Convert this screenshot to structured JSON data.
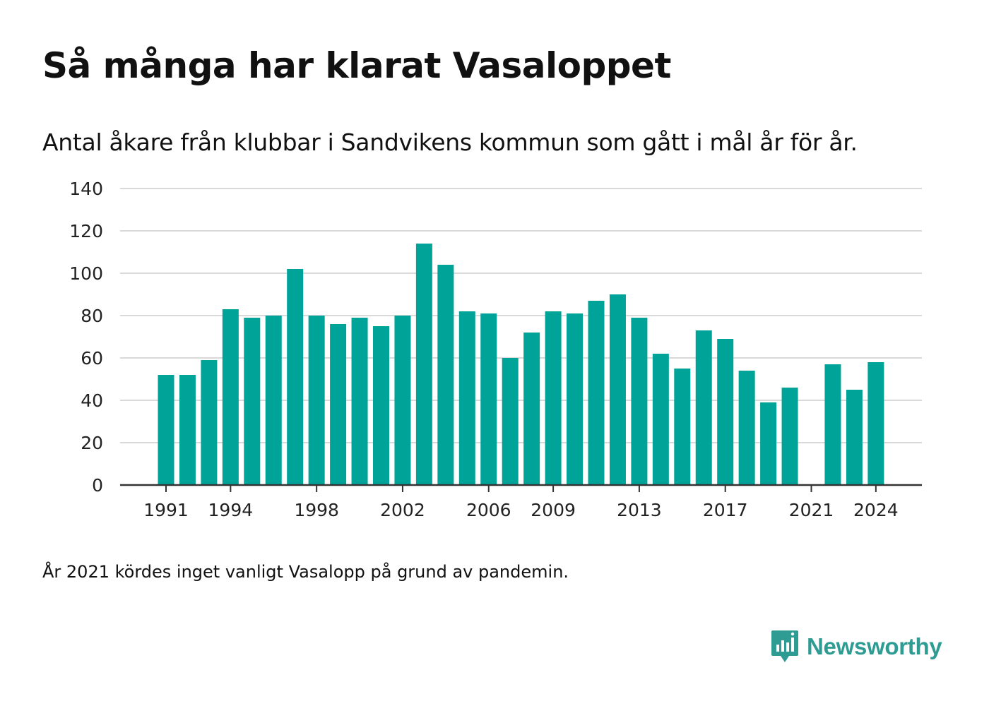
{
  "title": "Så många har klarat Vasaloppet",
  "subtitle": "Antal åkare från klubbar i Sandvikens kommun som gått i mål år för år.",
  "note": "År 2021 kördes inget vanligt Vasalopp på grund av pandemin.",
  "brand": {
    "name": "Newsworthy",
    "icon": "newsworthy-logo-icon",
    "color": "#2f9c93"
  },
  "colors": {
    "bar": "#00a398",
    "grid": "#d9d9d9",
    "axis": "#333333"
  },
  "chart_data": {
    "type": "bar",
    "title": "Så många har klarat Vasaloppet",
    "subtitle": "Antal åkare från klubbar i Sandvikens kommun som gått i mål år för år.",
    "categories": [
      1991,
      1992,
      1993,
      1994,
      1995,
      1996,
      1997,
      1998,
      1999,
      2000,
      2001,
      2002,
      2003,
      2004,
      2005,
      2006,
      2007,
      2008,
      2009,
      2010,
      2011,
      2012,
      2013,
      2014,
      2015,
      2016,
      2017,
      2018,
      2019,
      2020,
      2021,
      2022,
      2023,
      2024
    ],
    "values": [
      52,
      52,
      59,
      83,
      79,
      80,
      102,
      80,
      76,
      79,
      75,
      80,
      114,
      104,
      82,
      81,
      60,
      72,
      82,
      81,
      87,
      90,
      79,
      62,
      55,
      73,
      69,
      54,
      39,
      46,
      null,
      57,
      45,
      58
    ],
    "x_tick_labels": [
      "1991",
      "1994",
      "1998",
      "2002",
      "2006",
      "2009",
      "2013",
      "2017",
      "2021",
      "2024"
    ],
    "y_ticks": [
      0,
      20,
      40,
      60,
      80,
      100,
      120,
      140
    ],
    "ylim": [
      0,
      140
    ],
    "xlabel": "",
    "ylabel": "",
    "grid": true,
    "legend": "none"
  }
}
